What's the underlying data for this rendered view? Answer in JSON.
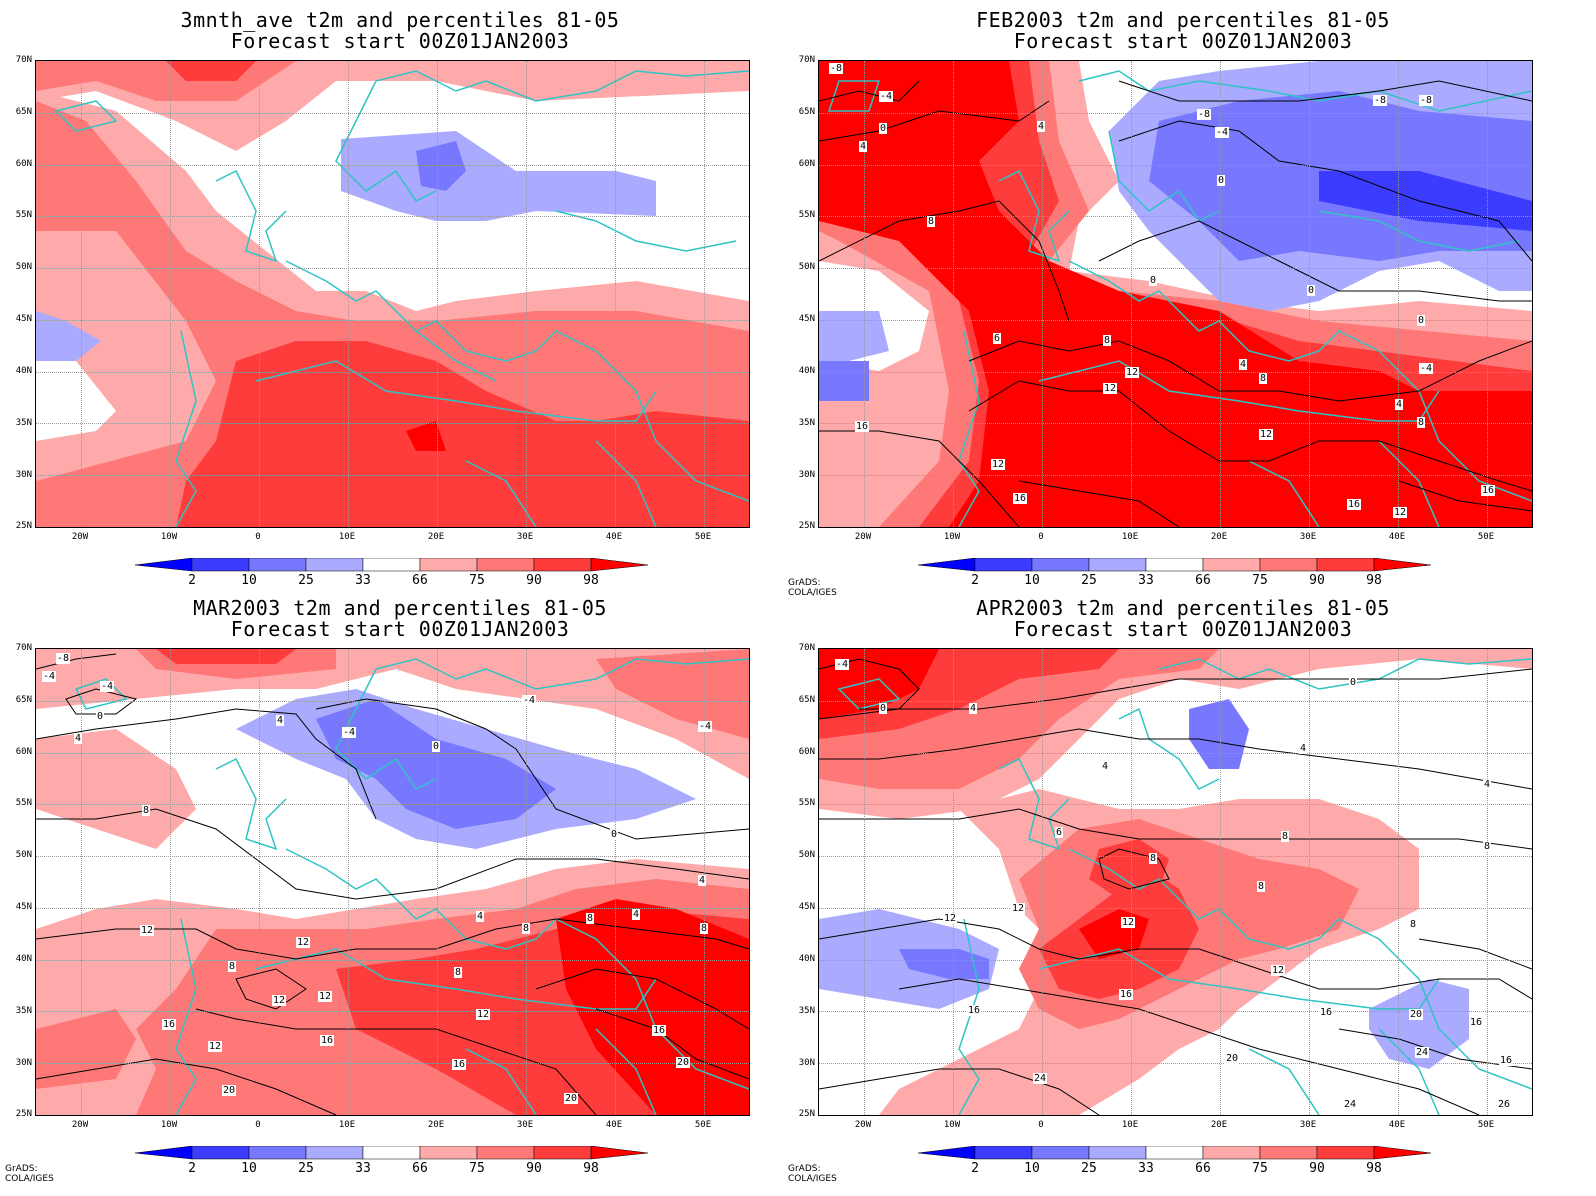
{
  "panels": [
    {
      "title_line1": "3mnth_ave t2m and percentiles 81-05",
      "title_line2": "Forecast start 00Z01JAN2003",
      "credit": "",
      "contour_labels": []
    },
    {
      "title_line1": "FEB2003 t2m and percentiles 81-05",
      "title_line2": "Forecast start 00Z01JAN2003",
      "credit": "GrADS: COLA/IGES",
      "contour_labels": [
        "-8",
        "-4",
        "0",
        "4",
        "-8",
        "-4",
        "-8",
        "-8",
        "0",
        "4",
        "8",
        "0",
        "0",
        "0",
        "6",
        "8",
        "12",
        "12",
        "4",
        "8",
        "-4",
        "4",
        "8",
        "16",
        "12",
        "12",
        "16",
        "16",
        "12",
        "16"
      ]
    },
    {
      "title_line1": "MAR2003 t2m and percentiles 81-05",
      "title_line2": "Forecast start 00Z01JAN2003",
      "credit": "GrADS: COLA/IGES",
      "contour_labels": [
        "-8",
        "-4",
        "-4",
        "0",
        "4",
        "4",
        "-4",
        "0",
        "-4",
        "-4",
        "8",
        "0",
        "4",
        "12",
        "12",
        "4",
        "8",
        "8",
        "4",
        "8",
        "12",
        "12",
        "8",
        "8",
        "16",
        "12",
        "16",
        "16",
        "12",
        "16",
        "20",
        "20",
        "20"
      ]
    },
    {
      "title_line1": "APR2003 t2m and percentiles 81-05",
      "title_line2": "Forecast start 00Z01JAN2003",
      "credit": "GrADS: COLA/IGES",
      "contour_labels": [
        "-4",
        "0",
        "4",
        "0",
        "4",
        "4",
        "4",
        "6",
        "8",
        "8",
        "8",
        "12",
        "12",
        "8",
        "12",
        "8",
        "16",
        "16",
        "20",
        "12",
        "16",
        "20",
        "16",
        "24",
        "24",
        "24",
        "26",
        "16"
      ]
    }
  ],
  "axes": {
    "lat_ticks": [
      "70N",
      "65N",
      "60N",
      "55N",
      "50N",
      "45N",
      "40N",
      "35N",
      "30N",
      "25N"
    ],
    "lon_ticks": [
      "20W",
      "10W",
      "0",
      "10E",
      "20E",
      "30E",
      "40E",
      "50E"
    ]
  },
  "colorbar": {
    "labels": [
      "2",
      "10",
      "25",
      "33",
      "66",
      "75",
      "90",
      "98"
    ],
    "colors": {
      "below2": "#0000ff",
      "p2_10": "#3c3cff",
      "p10_25": "#7878ff",
      "p25_33": "#aaaaff",
      "p33_66": "#ffffff",
      "p66_75": "#ffaaaa",
      "p75_90": "#ff7878",
      "p90_98": "#ff3c3c",
      "above98": "#ff0000"
    }
  },
  "colors": {
    "coast": "#2ec4c4",
    "contour": "#000000",
    "frame": "#000000"
  }
}
